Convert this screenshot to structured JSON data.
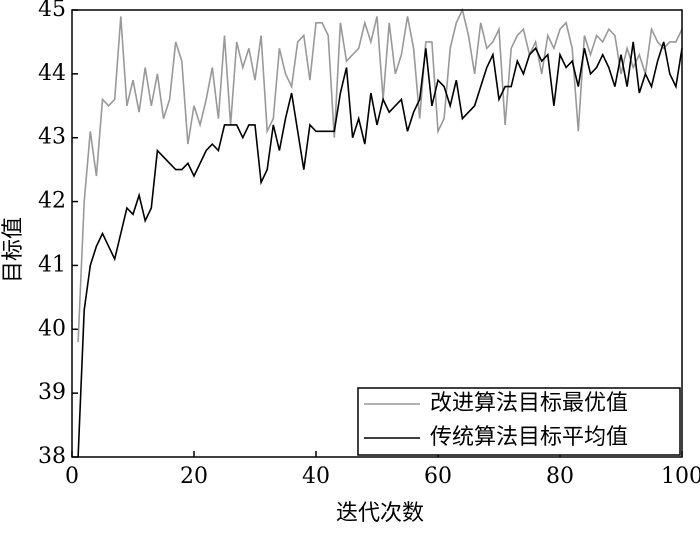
{
  "chart_data": {
    "type": "line",
    "x_label": "迭代次数",
    "y_label": "目标值",
    "x": [
      1,
      2,
      3,
      4,
      5,
      6,
      7,
      8,
      9,
      10,
      11,
      12,
      13,
      14,
      15,
      16,
      17,
      18,
      19,
      20,
      21,
      22,
      23,
      24,
      25,
      26,
      27,
      28,
      29,
      30,
      31,
      32,
      33,
      34,
      35,
      36,
      37,
      38,
      39,
      40,
      41,
      42,
      43,
      44,
      45,
      46,
      47,
      48,
      49,
      50,
      51,
      52,
      53,
      54,
      55,
      56,
      57,
      58,
      59,
      60,
      61,
      62,
      63,
      64,
      65,
      66,
      67,
      68,
      69,
      70,
      71,
      72,
      73,
      74,
      75,
      76,
      77,
      78,
      79,
      80,
      81,
      82,
      83,
      84,
      85,
      86,
      87,
      88,
      89,
      90,
      91,
      92,
      93,
      94,
      95,
      96,
      97,
      98,
      99,
      100
    ],
    "series": [
      {
        "name": "改进算法目标最优值",
        "color": "#999999",
        "values": [
          39.8,
          42.0,
          43.1,
          42.4,
          43.6,
          43.5,
          43.6,
          44.9,
          43.5,
          43.9,
          43.4,
          44.1,
          43.5,
          44.0,
          43.3,
          43.6,
          44.5,
          44.2,
          42.9,
          43.5,
          43.2,
          43.6,
          44.1,
          43.3,
          44.6,
          43.2,
          44.5,
          44.1,
          44.4,
          43.9,
          44.6,
          43.1,
          43.3,
          44.4,
          44.0,
          43.8,
          44.5,
          44.6,
          43.9,
          44.8,
          44.8,
          44.6,
          43.0,
          44.8,
          44.2,
          44.3,
          44.4,
          44.8,
          44.5,
          44.9,
          43.6,
          44.8,
          44.0,
          44.3,
          44.9,
          44.4,
          43.3,
          44.5,
          44.5,
          43.1,
          43.3,
          44.4,
          44.8,
          45.0,
          44.6,
          44.0,
          44.8,
          44.4,
          44.5,
          44.7,
          43.2,
          44.4,
          44.6,
          44.7,
          44.3,
          44.5,
          44.0,
          44.6,
          44.4,
          44.7,
          44.8,
          44.4,
          43.1,
          44.6,
          44.3,
          44.6,
          44.5,
          44.7,
          44.6,
          44.0,
          44.4,
          44.1,
          44.3,
          44.0,
          44.7,
          44.5,
          44.4,
          44.5,
          44.5,
          44.7
        ]
      },
      {
        "name": "传统算法目标平均值",
        "color": "#000000",
        "values": [
          38.0,
          40.3,
          41.0,
          41.3,
          41.5,
          41.3,
          41.1,
          41.5,
          41.9,
          41.8,
          42.1,
          41.7,
          41.9,
          42.8,
          42.7,
          42.6,
          42.5,
          42.5,
          42.6,
          42.4,
          42.6,
          42.8,
          42.9,
          42.8,
          43.2,
          43.2,
          43.2,
          43.0,
          43.2,
          43.2,
          42.3,
          42.5,
          43.2,
          42.8,
          43.3,
          43.7,
          43.1,
          42.5,
          43.2,
          43.1,
          43.1,
          43.1,
          43.1,
          43.7,
          44.1,
          43.0,
          43.3,
          42.9,
          43.7,
          43.2,
          43.6,
          43.4,
          43.5,
          43.6,
          43.1,
          43.4,
          43.6,
          44.4,
          43.5,
          43.9,
          43.8,
          43.5,
          43.9,
          43.3,
          43.4,
          43.5,
          43.8,
          44.1,
          44.3,
          43.6,
          43.8,
          43.8,
          44.2,
          44.0,
          44.3,
          44.4,
          44.2,
          44.3,
          43.5,
          44.3,
          44.1,
          44.2,
          43.8,
          44.4,
          44.0,
          44.1,
          44.3,
          44.1,
          43.8,
          44.3,
          43.8,
          44.5,
          43.7,
          44.0,
          43.8,
          44.2,
          44.5,
          44.0,
          43.8,
          44.4
        ]
      }
    ],
    "xlim": [
      0,
      100
    ],
    "xticks": [
      0,
      20,
      40,
      60,
      80,
      100
    ],
    "ylim": [
      38,
      45
    ],
    "yticks": [
      38,
      39,
      40,
      41,
      42,
      43,
      44,
      45
    ],
    "legend": "lower right"
  }
}
